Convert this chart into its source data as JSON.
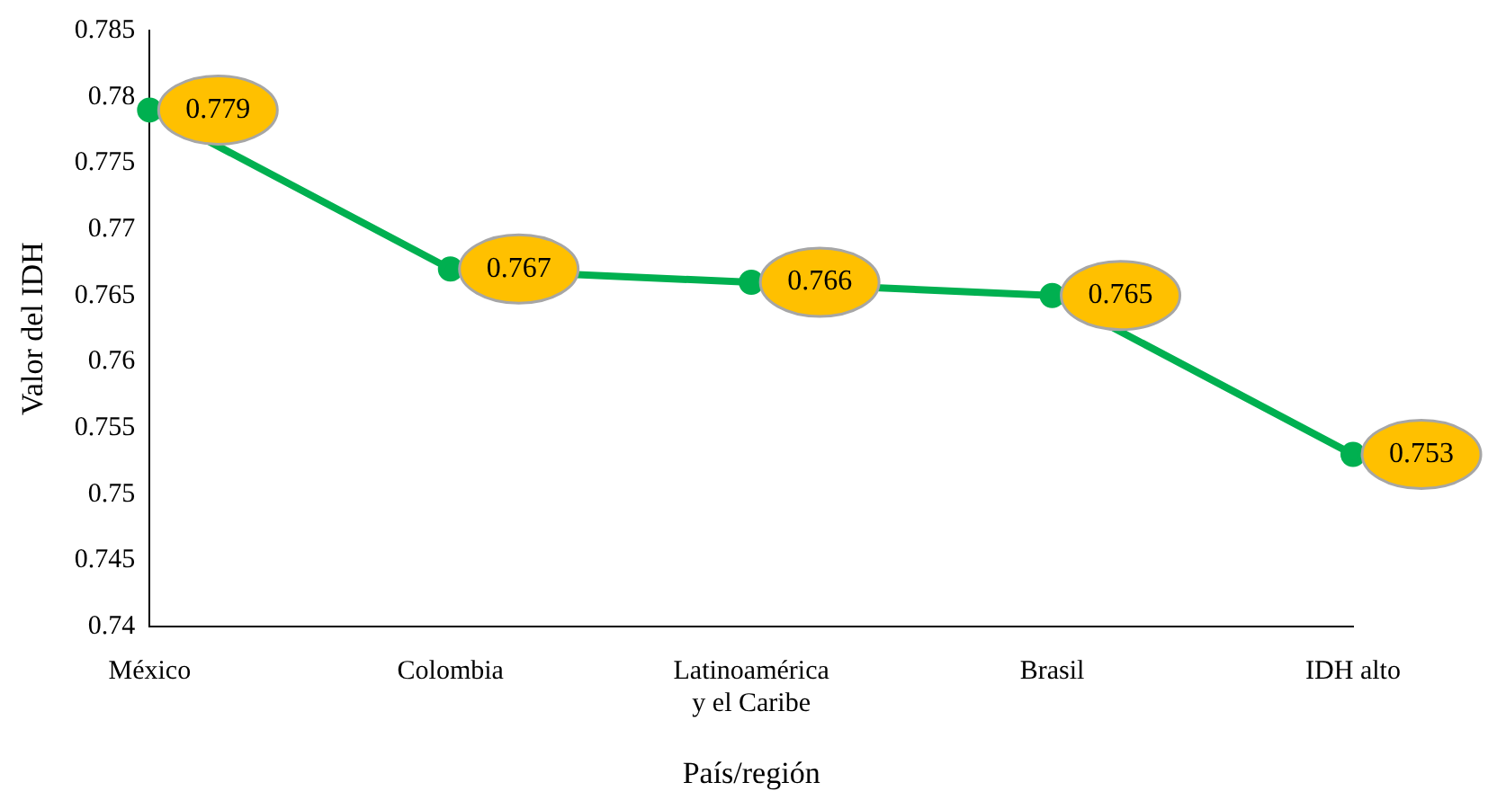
{
  "chart_data": {
    "type": "line",
    "xlabel": "País/región",
    "ylabel": "Valor del IDH",
    "categories": [
      "México",
      "Colombia",
      "Latinoamérica y el Caribe",
      "Brasil",
      "IDH alto"
    ],
    "series": [
      {
        "color": "#00b050",
        "values": [
          0.779,
          0.767,
          0.766,
          0.765,
          0.753
        ]
      }
    ],
    "ylim": [
      0.74,
      0.785
    ],
    "yticks": [
      0.74,
      0.745,
      0.75,
      0.755,
      0.76,
      0.765,
      0.77,
      0.775,
      0.78,
      0.785
    ],
    "grid": false,
    "legend": false,
    "marker": "circle",
    "line_style": "solid",
    "data_labels": true
  }
}
